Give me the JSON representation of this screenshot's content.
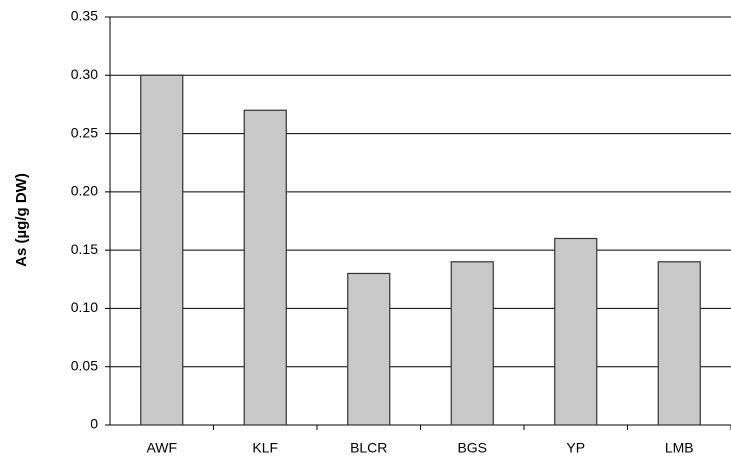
{
  "chart_data": {
    "type": "bar",
    "y_label": "As  (µg/g DW)",
    "categories": [
      "AWF",
      "KLF",
      "BLCR",
      "BGS",
      "YP",
      "LMB"
    ],
    "values": [
      0.3,
      0.27,
      0.13,
      0.14,
      0.16,
      0.14
    ],
    "color": "#c9c9c9",
    "ylim": [
      0,
      0.35
    ],
    "yticks": [
      0,
      0.05,
      {
        "value": 0.1,
        "label": "0.10"
      },
      0.15,
      {
        "value": 0.2,
        "label": "0.20"
      },
      0.25,
      {
        "value": 0.3,
        "label": "0.30"
      },
      0.35
    ],
    "grid": true
  }
}
